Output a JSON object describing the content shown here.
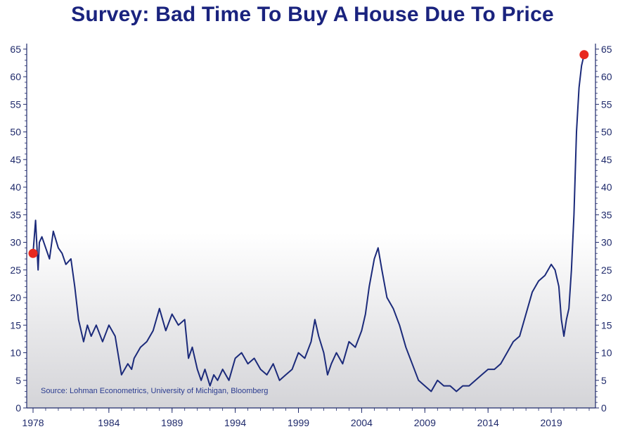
{
  "title": "Survey: Bad Time To Buy A House Due To Price",
  "source": "Source: Lohman Econometrics, University of Michigan, Bloomberg",
  "colors": {
    "title": "#1a237e",
    "line": "#1b2a7a",
    "marker": "#e8281e",
    "axis": "#1f2a6b"
  },
  "chart_data": {
    "type": "line",
    "title": "Survey: Bad Time To Buy A House Due To Price",
    "xlabel": "",
    "ylabel": "",
    "xlim": [
      1977.5,
      2022.5
    ],
    "ylim": [
      0,
      66
    ],
    "x_ticks": [
      "1978",
      "1984",
      "1989",
      "1994",
      "1999",
      "2004",
      "2009",
      "2014",
      "2019"
    ],
    "y_ticks": [
      "0",
      "5",
      "10",
      "15",
      "20",
      "25",
      "30",
      "35",
      "40",
      "45",
      "50",
      "55",
      "60",
      "65"
    ],
    "grid": false,
    "background": "white-to-grey vertical gradient",
    "series": [
      {
        "x": [
          1978.0,
          1978.2,
          1978.4,
          1978.5,
          1978.7,
          1979.0,
          1979.3,
          1979.6,
          1980.0,
          1980.3,
          1980.6,
          1981.0,
          1981.3,
          1981.6,
          1981.8,
          1982.0,
          1982.3,
          1982.6,
          1983.0,
          1983.5,
          1984.0,
          1984.5,
          1985.0,
          1985.5,
          1985.8,
          1986.0,
          1986.5,
          1987.0,
          1987.5,
          1988.0,
          1988.5,
          1989.0,
          1989.5,
          1990.0,
          1990.3,
          1990.6,
          1991.0,
          1991.3,
          1991.6,
          1992.0,
          1992.3,
          1992.6,
          1993.0,
          1993.5,
          1994.0,
          1994.5,
          1995.0,
          1995.5,
          1996.0,
          1996.5,
          1997.0,
          1997.5,
          1998.0,
          1998.5,
          1999.0,
          1999.5,
          2000.0,
          2000.3,
          2000.6,
          2001.0,
          2001.3,
          2001.6,
          2002.0,
          2002.5,
          2003.0,
          2003.5,
          2004.0,
          2004.3,
          2004.6,
          2005.0,
          2005.3,
          2005.6,
          2006.0,
          2006.5,
          2007.0,
          2007.5,
          2008.0,
          2008.5,
          2009.0,
          2009.5,
          2010.0,
          2010.5,
          2011.0,
          2011.5,
          2012.0,
          2012.5,
          2013.0,
          2013.5,
          2014.0,
          2014.5,
          2015.0,
          2015.5,
          2016.0,
          2016.5,
          2017.0,
          2017.5,
          2018.0,
          2018.5,
          2019.0,
          2019.3,
          2019.6,
          2019.8,
          2020.0,
          2020.2,
          2020.4,
          2020.6,
          2020.8,
          2021.0,
          2021.2,
          2021.4,
          2021.6
        ],
        "values": [
          28,
          34,
          25,
          30,
          31,
          29,
          27,
          32,
          29,
          28,
          26,
          27,
          22,
          16,
          14,
          12,
          15,
          13,
          15,
          12,
          15,
          13,
          6,
          8,
          7,
          9,
          11,
          12,
          14,
          18,
          14,
          17,
          15,
          16,
          9,
          11,
          7,
          5,
          7,
          4,
          6,
          5,
          7,
          5,
          9,
          10,
          8,
          9,
          7,
          6,
          8,
          5,
          6,
          7,
          10,
          9,
          12,
          16,
          13,
          10,
          6,
          8,
          10,
          8,
          12,
          11,
          14,
          17,
          22,
          27,
          29,
          25,
          20,
          18,
          15,
          11,
          8,
          5,
          4,
          3,
          5,
          4,
          4,
          3,
          4,
          4,
          5,
          6,
          7,
          7,
          8,
          10,
          12,
          13,
          17,
          21,
          23,
          24,
          26,
          25,
          22,
          16,
          13,
          16,
          18,
          25,
          35,
          50,
          58,
          62,
          64
        ]
      }
    ],
    "highlighted_points": [
      {
        "x": 1978.0,
        "y": 28
      },
      {
        "x": 2021.6,
        "y": 64
      }
    ]
  }
}
